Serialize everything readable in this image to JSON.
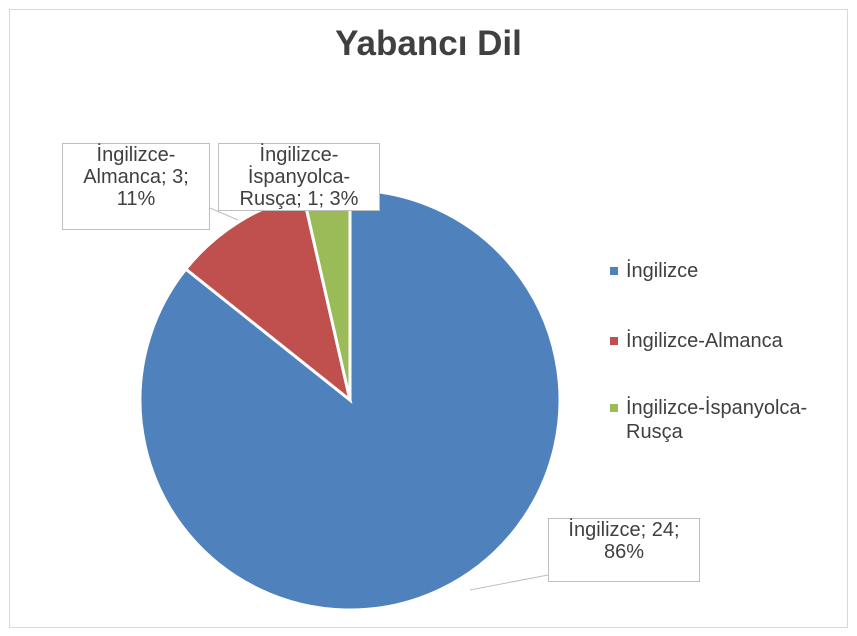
{
  "chart_data": {
    "type": "pie",
    "title": "Yabancı Dil",
    "categories": [
      "İngilizce",
      "İngilizce-Almanca",
      "İngilizce-İspanyolca-Rusça"
    ],
    "values": [
      24,
      3,
      1
    ],
    "value_labels": [
      "İngilizce; 24; 86%",
      "İngilizce-Almanca; 3; 11%",
      "İngilizce-İspanyolca-Rusça; 1; 3%"
    ],
    "colors": [
      "#4f81bd",
      "#c0504d",
      "#9bbb59"
    ],
    "legend": "right"
  }
}
